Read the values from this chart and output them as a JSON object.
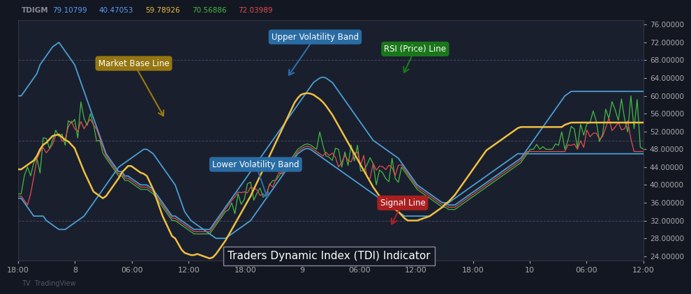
{
  "background_color": "#131722",
  "plot_bg_color": "#1a1f2e",
  "title": "Traders Dynamic Index (TDI) Indicator",
  "header_text": "TDIGM",
  "header_values": [
    {
      "val": "79.10799",
      "color": "#5b9cf6"
    },
    {
      "val": "40.47053",
      "color": "#5b9cf6"
    },
    {
      "val": "59.78926",
      "color": "#f0c040"
    },
    {
      "val": "70.56886",
      "color": "#44bb44"
    },
    {
      "val": "72.03989",
      "color": "#e05050"
    }
  ],
  "ylim": [
    23,
    77
  ],
  "y_ticks": [
    24.0,
    28.0,
    32.0,
    36.0,
    40.0,
    44.0,
    48.0,
    52.0,
    56.0,
    60.0,
    64.0,
    68.0,
    72.0,
    76.0
  ],
  "hlines": [
    68.0,
    50.0,
    32.0
  ],
  "x_labels": [
    "18:00",
    "8",
    "06:00",
    "12:00",
    "18:00",
    "9",
    "06:00",
    "12:00",
    "18:00",
    "10",
    "06:00",
    "12:00"
  ],
  "n_points": 200,
  "line_colors": {
    "upper": "#4a9fd4",
    "lower": "#4a9fd4",
    "rsi": "#44bb44",
    "signal": "#e05050",
    "market": "#f0c040"
  }
}
